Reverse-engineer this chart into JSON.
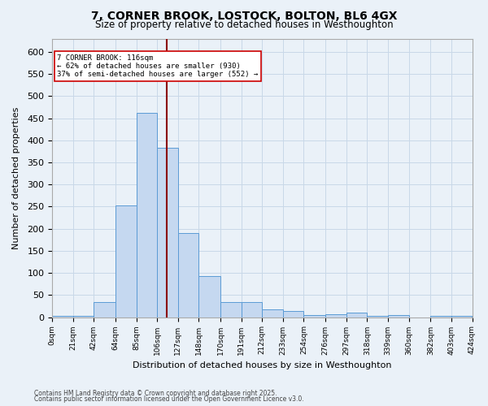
{
  "title": "7, CORNER BROOK, LOSTOCK, BOLTON, BL6 4GX",
  "subtitle": "Size of property relative to detached houses in Westhoughton",
  "xlabel": "Distribution of detached houses by size in Westhoughton",
  "ylabel": "Number of detached properties",
  "bin_labels": [
    "0sqm",
    "21sqm",
    "42sqm",
    "64sqm",
    "85sqm",
    "106sqm",
    "127sqm",
    "148sqm",
    "170sqm",
    "191sqm",
    "212sqm",
    "233sqm",
    "254sqm",
    "276sqm",
    "297sqm",
    "318sqm",
    "339sqm",
    "360sqm",
    "382sqm",
    "403sqm",
    "424sqm"
  ],
  "bin_edges": [
    0,
    21,
    42,
    64,
    85,
    106,
    127,
    148,
    170,
    191,
    212,
    233,
    254,
    276,
    297,
    318,
    339,
    360,
    382,
    403,
    424
  ],
  "bar_heights": [
    3,
    2,
    35,
    253,
    462,
    383,
    190,
    93,
    35,
    35,
    18,
    13,
    4,
    7,
    10,
    2,
    4,
    0,
    2,
    3
  ],
  "bar_color": "#c5d8f0",
  "bar_edgecolor": "#5b9bd5",
  "grid_color": "#c8d8e8",
  "bg_color": "#eaf1f8",
  "vline_x": 116,
  "vline_color": "#8b0000",
  "annotation_text": "7 CORNER BROOK: 116sqm\n← 62% of detached houses are smaller (930)\n37% of semi-detached houses are larger (552) →",
  "annotation_box_color": "#ffffff",
  "annotation_box_edgecolor": "#cc0000",
  "ylim": [
    0,
    630
  ],
  "yticks": [
    0,
    50,
    100,
    150,
    200,
    250,
    300,
    350,
    400,
    450,
    500,
    550,
    600
  ],
  "footnote1": "Contains HM Land Registry data © Crown copyright and database right 2025.",
  "footnote2": "Contains public sector information licensed under the Open Government Licence v3.0."
}
